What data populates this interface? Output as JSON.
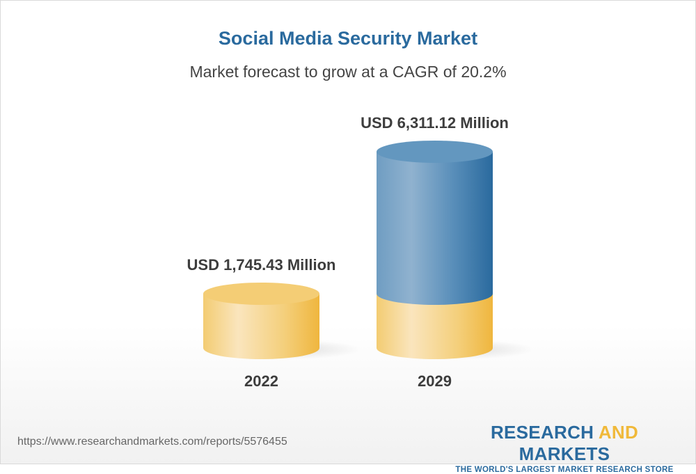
{
  "title": "Social Media Security Market",
  "subtitle": "Market forecast to grow at a CAGR of 20.2%",
  "chart_data": {
    "type": "bar",
    "style": "3d-cylinder",
    "categories": [
      "2022",
      "2029"
    ],
    "values": [
      1745.43,
      6311.12
    ],
    "data_labels": [
      "USD 1,745.43 Million",
      "USD 6,311.12 Million"
    ],
    "unit": "USD Million",
    "cagr": "20.2%",
    "colors": {
      "base": "#f2c45e",
      "growth": "#2e6b9e"
    },
    "grid": false,
    "legend": "none"
  },
  "footer": {
    "url": "https://www.researchandmarkets.com/reports/5576455",
    "logo_part1": "RESEARCH ",
    "logo_part2": "AND",
    "logo_part3": " MARKETS",
    "logo_tagline": "THE WORLD'S LARGEST MARKET RESEARCH STORE"
  }
}
